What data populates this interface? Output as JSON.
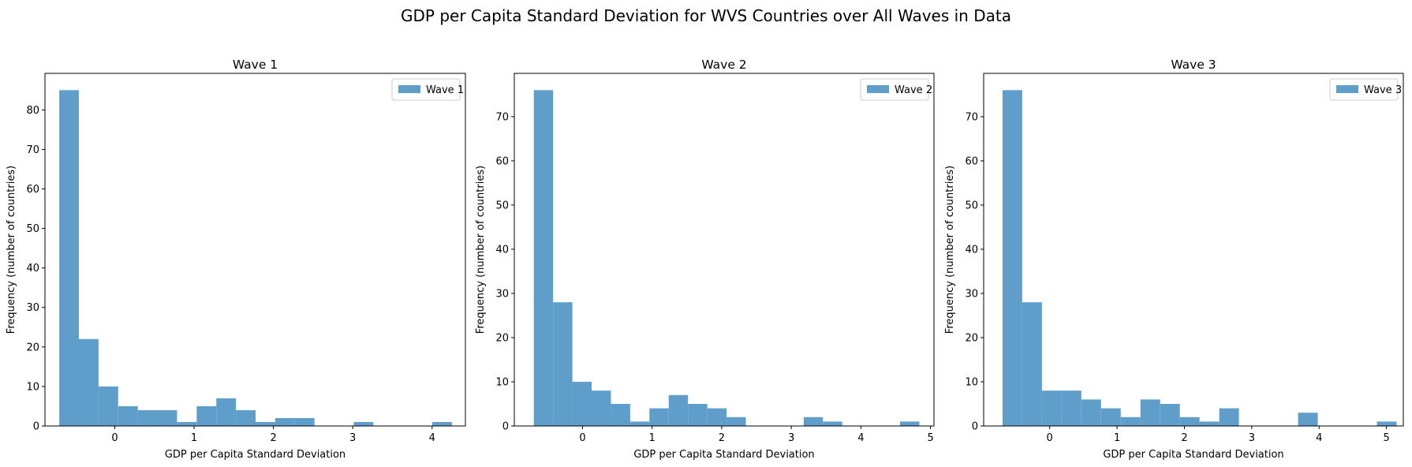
{
  "figure": {
    "title": "GDP per Capita Standard Deviation for WVS Countries over All Waves in Data"
  },
  "colors": {
    "bar": "#5f9ecb",
    "axis": "#000000"
  },
  "chart_data": [
    {
      "type": "bar",
      "title": "Wave 1",
      "xlabel": "GDP per Capita Standard Deviation",
      "ylabel": "Frequency (number of countries)",
      "legend": {
        "entries": [
          "Wave 1"
        ],
        "placement": "top-right"
      },
      "xlim": [
        -0.88,
        4.42
      ],
      "ylim": [
        0,
        89.25
      ],
      "xticks": [
        0,
        1,
        2,
        3,
        4
      ],
      "yticks": [
        0,
        10,
        20,
        30,
        40,
        50,
        60,
        70,
        80
      ],
      "bin_start": -0.7,
      "bin_width": 0.2475,
      "series": [
        {
          "name": "Wave 1",
          "values": [
            85,
            22,
            10,
            5,
            4,
            4,
            1,
            5,
            7,
            4,
            1,
            2,
            2,
            0,
            0,
            1,
            0,
            0,
            0,
            1
          ]
        }
      ]
    },
    {
      "type": "bar",
      "title": "Wave 2",
      "xlabel": "GDP per Capita Standard Deviation",
      "ylabel": "Frequency (number of countries)",
      "legend": {
        "entries": [
          "Wave 2"
        ],
        "placement": "top-right"
      },
      "xlim": [
        -0.98,
        5.05
      ],
      "ylim": [
        0,
        79.8
      ],
      "xticks": [
        0,
        1,
        2,
        3,
        4,
        5
      ],
      "yticks": [
        0,
        10,
        20,
        30,
        40,
        50,
        60,
        70
      ],
      "bin_start": -0.7,
      "bin_width": 0.277,
      "series": [
        {
          "name": "Wave 2",
          "values": [
            76,
            28,
            10,
            8,
            5,
            1,
            4,
            7,
            5,
            4,
            2,
            0,
            0,
            0,
            2,
            1,
            0,
            0,
            0,
            1
          ]
        }
      ]
    },
    {
      "type": "bar",
      "title": "Wave 3",
      "xlabel": "GDP per Capita Standard Deviation",
      "ylabel": "Frequency (number of countries)",
      "legend": {
        "entries": [
          "Wave 3"
        ],
        "placement": "top-right"
      },
      "xlim": [
        -0.98,
        5.25
      ],
      "ylim": [
        0,
        79.8
      ],
      "xticks": [
        0,
        1,
        2,
        3,
        4,
        5
      ],
      "yticks": [
        0,
        10,
        20,
        30,
        40,
        50,
        60,
        70
      ],
      "bin_start": -0.7,
      "bin_width": 0.2925,
      "series": [
        {
          "name": "Wave 3",
          "values": [
            76,
            28,
            8,
            8,
            6,
            4,
            2,
            6,
            5,
            2,
            1,
            4,
            0,
            0,
            0,
            3,
            0,
            0,
            0,
            1
          ]
        }
      ]
    }
  ]
}
